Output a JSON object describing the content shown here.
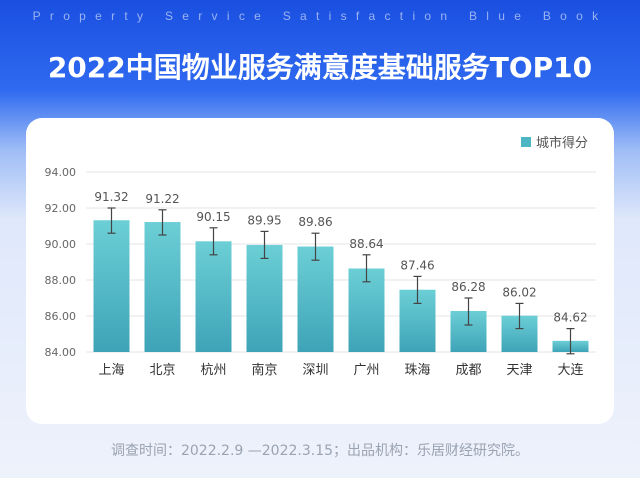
{
  "header": {
    "eyebrow": "Property Service Satisfaction Blue Book",
    "title": "2022中国物业服务满意度基础服务TOP10"
  },
  "colors": {
    "bar_top": "#6ccfd6",
    "bar_bottom": "#3ea3b7",
    "error_bar": "#444444",
    "grid": "#e6e6e6"
  },
  "chart_data": {
    "type": "bar",
    "categories": [
      "上海",
      "北京",
      "杭州",
      "南京",
      "深圳",
      "广州",
      "珠海",
      "成都",
      "天津",
      "大连"
    ],
    "series": [
      {
        "name": "城市得分",
        "values": [
          91.32,
          91.22,
          90.15,
          89.95,
          89.86,
          88.64,
          87.46,
          86.28,
          86.02,
          84.62
        ]
      }
    ],
    "value_labels": [
      "91.32",
      "91.22",
      "90.15",
      "89.95",
      "89.86",
      "88.64",
      "87.46",
      "86.28",
      "86.02",
      "84.62"
    ],
    "error_bars": {
      "lower": [
        90.6,
        90.5,
        89.4,
        89.2,
        89.1,
        87.9,
        86.7,
        85.5,
        85.3,
        83.9
      ],
      "upper": [
        92.0,
        91.9,
        90.9,
        90.7,
        90.6,
        89.4,
        88.2,
        87.0,
        86.7,
        85.3
      ]
    },
    "ylim": [
      84,
      94
    ],
    "yticks": [
      "84.00",
      "86.00",
      "88.00",
      "90.00",
      "92.00",
      "94.00"
    ],
    "ytick_values": [
      84,
      86,
      88,
      90,
      92,
      94
    ],
    "grid": true,
    "legend_position": "top-right"
  },
  "footer": {
    "text": "调查时间：2022.2.9 —2022.3.15；出品机构：乐居财经研究院。"
  }
}
